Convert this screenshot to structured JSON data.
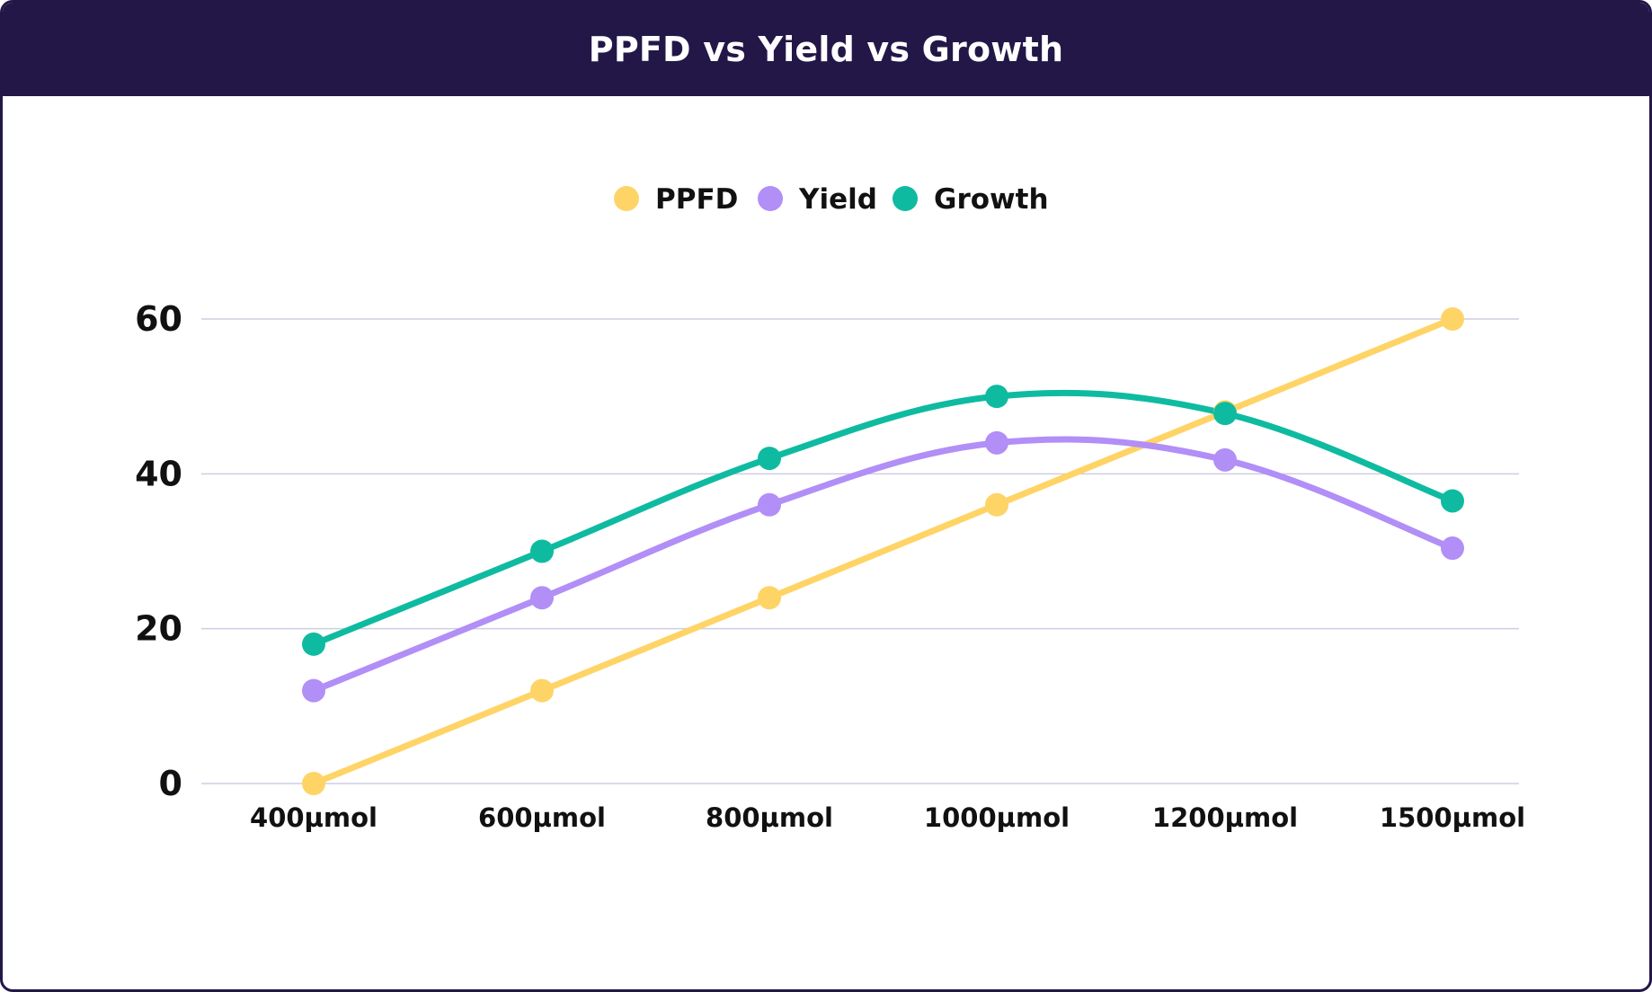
{
  "header": {
    "title": "PPFD vs Yield vs Growth"
  },
  "colors": {
    "header_bg": "#231748",
    "gridline": "#cfcde3",
    "ppfd": "#ffd466",
    "yield": "#b28ef7",
    "growth": "#0fbba0"
  },
  "chart_data": {
    "type": "line",
    "title": "PPFD vs Yield vs Growth",
    "xlabel": "",
    "ylabel": "",
    "categories": [
      "400µmol",
      "600µmol",
      "800µmol",
      "1000µmol",
      "1200µmol",
      "1500µmol"
    ],
    "ylim": [
      0,
      60
    ],
    "yticks": [
      0,
      20,
      40,
      60
    ],
    "grid": true,
    "legend_position": "top-center",
    "series": [
      {
        "name": "PPFD",
        "color": "#ffd466",
        "values": [
          0,
          12,
          24,
          36,
          48,
          60
        ]
      },
      {
        "name": "Yield",
        "color": "#b28ef7",
        "values": [
          12,
          24,
          36,
          44,
          41.8,
          30.4
        ]
      },
      {
        "name": "Growth",
        "color": "#0fbba0",
        "values": [
          18,
          30,
          42,
          50,
          47.8,
          36.5
        ]
      }
    ]
  }
}
